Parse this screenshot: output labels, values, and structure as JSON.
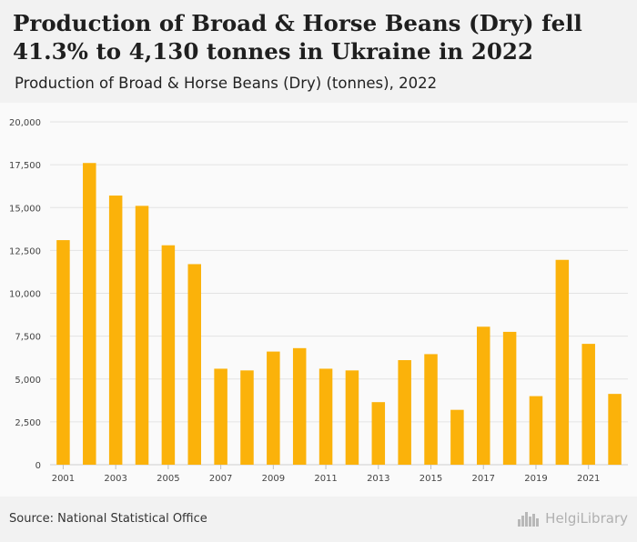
{
  "title": "Production of Broad & Horse Beans (Dry) fell 41.3% to 4,130 tonnes in Ukraine in 2022",
  "subtitle": "Production of Broad & Horse Beans (Dry) (tonnes), 2022",
  "source": "Source: National Statistical Office",
  "brand": {
    "name": "HelgiLibrary",
    "icon": "helgi-skyline-icon"
  },
  "colors": {
    "bar": "#fbb20a",
    "grid": "#e3e3e3",
    "axis_text": "#444444",
    "background": "#f2f2f2",
    "plot_background": "#fafafa"
  },
  "chart_data": {
    "type": "bar",
    "title": "",
    "xlabel": "",
    "ylabel": "",
    "categories": [
      "2001",
      "2002",
      "2003",
      "2004",
      "2005",
      "2006",
      "2007",
      "2008",
      "2009",
      "2010",
      "2011",
      "2012",
      "2013",
      "2014",
      "2015",
      "2016",
      "2017",
      "2018",
      "2019",
      "2020",
      "2021",
      "2022"
    ],
    "x_tick_labels": [
      "2001",
      "",
      "2003",
      "",
      "2005",
      "",
      "2007",
      "",
      "2009",
      "",
      "2011",
      "",
      "2013",
      "",
      "2015",
      "",
      "2017",
      "",
      "2019",
      "",
      "2021",
      ""
    ],
    "values": [
      13100,
      17600,
      15700,
      15100,
      12800,
      11700,
      5600,
      5500,
      6600,
      6800,
      5600,
      5500,
      3650,
      6100,
      6450,
      3200,
      8050,
      7750,
      4000,
      11950,
      7050,
      4130
    ],
    "ylim": [
      0,
      20000
    ],
    "yticks": [
      0,
      2500,
      5000,
      7500,
      10000,
      12500,
      15000,
      17500,
      20000
    ],
    "ytick_labels": [
      "0",
      "2,500",
      "5,000",
      "7,500",
      "10,000",
      "12,500",
      "15,000",
      "17,500",
      "20,000"
    ],
    "grid": true,
    "legend": "none"
  }
}
